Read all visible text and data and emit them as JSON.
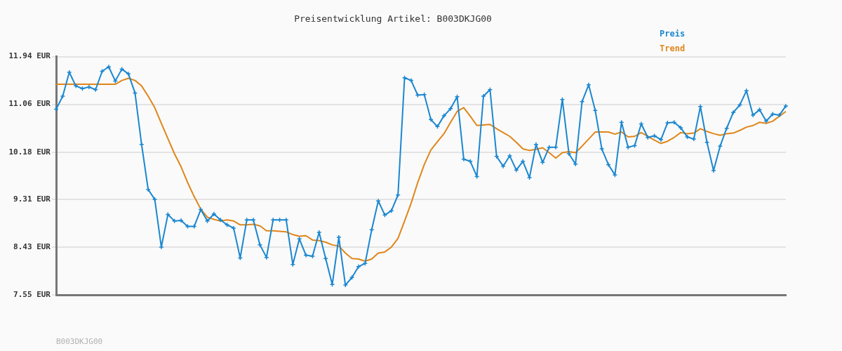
{
  "chart_data": {
    "type": "line",
    "title": "Preisentwicklung Artikel: B003DKJG00",
    "categories": [
      null,
      null,
      null,
      null,
      null,
      null,
      null,
      null,
      null,
      null,
      null,
      null,
      null,
      null,
      null,
      null,
      null,
      null,
      null,
      null,
      null,
      null,
      null,
      null,
      null,
      null,
      null,
      null,
      null,
      null,
      null,
      null,
      null,
      null,
      null,
      null,
      null,
      null,
      null,
      null,
      null,
      null,
      null,
      null,
      null,
      null,
      null,
      null,
      null,
      null,
      null,
      null,
      null,
      null,
      null,
      null,
      null,
      null,
      null,
      null,
      null,
      null,
      null,
      null,
      null,
      null,
      null,
      null,
      null,
      null,
      null,
      null,
      null,
      null,
      null,
      null,
      null,
      null,
      null,
      null,
      null,
      null,
      null,
      null,
      null,
      null,
      null,
      null,
      null,
      null,
      null,
      null,
      null,
      null,
      null,
      null,
      null,
      null,
      null,
      null,
      null,
      null,
      null,
      null,
      null,
      null,
      null,
      null,
      null,
      null,
      null,
      null
    ],
    "series": [
      {
        "name": "Preis",
        "color": "#1a87d0",
        "marker": "cross",
        "values": [
          10.97,
          11.21,
          11.65,
          11.4,
          11.35,
          11.38,
          11.33,
          11.67,
          11.75,
          11.49,
          11.71,
          11.62,
          11.27,
          10.32,
          9.49,
          9.31,
          8.43,
          9.03,
          8.91,
          8.92,
          8.81,
          8.81,
          9.12,
          8.91,
          9.04,
          8.93,
          8.84,
          8.78,
          8.23,
          8.93,
          8.93,
          8.47,
          8.24,
          8.93,
          8.93,
          8.93,
          8.11,
          8.58,
          8.28,
          8.26,
          8.7,
          8.22,
          7.74,
          8.61,
          7.73,
          7.87,
          8.07,
          8.13,
          8.75,
          9.28,
          9.02,
          9.1,
          9.39,
          11.55,
          11.5,
          11.23,
          11.24,
          10.78,
          10.65,
          10.85,
          10.98,
          11.2,
          10.05,
          10.01,
          9.73,
          11.21,
          11.33,
          10.1,
          9.92,
          10.11,
          9.85,
          10.01,
          9.71,
          10.32,
          9.99,
          10.27,
          10.27,
          11.15,
          10.15,
          9.96,
          11.11,
          11.42,
          10.95,
          10.24,
          9.95,
          9.76,
          10.73,
          10.27,
          10.3,
          10.7,
          10.45,
          10.48,
          10.41,
          10.72,
          10.73,
          10.63,
          10.46,
          10.42,
          11.02,
          10.36,
          9.84,
          10.29,
          10.62,
          10.91,
          11.05,
          11.31,
          10.86,
          10.96,
          10.75,
          10.88,
          10.86,
          11.03
        ]
      },
      {
        "name": "Trend",
        "color": "#e0861a",
        "marker": "none",
        "values": [
          11.43,
          11.43,
          11.43,
          11.43,
          11.43,
          11.43,
          11.43,
          11.43,
          11.43,
          11.43,
          11.5,
          11.54,
          11.5,
          11.4,
          11.21,
          11.0,
          10.71,
          10.43,
          10.15,
          9.91,
          9.62,
          9.36,
          9.13,
          8.98,
          8.94,
          8.91,
          8.93,
          8.91,
          8.84,
          8.84,
          8.85,
          8.82,
          8.73,
          8.73,
          8.72,
          8.71,
          8.66,
          8.63,
          8.64,
          8.56,
          8.55,
          8.52,
          8.47,
          8.45,
          8.32,
          8.22,
          8.21,
          8.17,
          8.21,
          8.32,
          8.34,
          8.43,
          8.59,
          8.91,
          9.24,
          9.62,
          9.95,
          10.22,
          10.37,
          10.52,
          10.73,
          10.93,
          11.0,
          10.84,
          10.67,
          10.68,
          10.69,
          10.61,
          10.54,
          10.47,
          10.36,
          10.24,
          10.21,
          10.23,
          10.26,
          10.17,
          10.07,
          10.17,
          10.19,
          10.17,
          10.29,
          10.42,
          10.55,
          10.55,
          10.55,
          10.51,
          10.55,
          10.46,
          10.47,
          10.54,
          10.47,
          10.4,
          10.34,
          10.38,
          10.45,
          10.54,
          10.52,
          10.53,
          10.61,
          10.56,
          10.52,
          10.49,
          10.52,
          10.53,
          10.58,
          10.64,
          10.67,
          10.73,
          10.71,
          10.75,
          10.84,
          10.93
        ]
      }
    ],
    "ylim": [
      7.55,
      11.94
    ],
    "yticks": [
      {
        "value": 7.55,
        "label": "7.55 EUR"
      },
      {
        "value": 8.43,
        "label": "8.43 EUR"
      },
      {
        "value": 9.31,
        "label": "9.31 EUR"
      },
      {
        "value": 10.18,
        "label": "10.18 EUR"
      },
      {
        "value": 11.06,
        "label": "11.06 EUR"
      },
      {
        "value": 11.94,
        "label": "11.94 EUR"
      }
    ],
    "grid": "y",
    "legend": "top right",
    "tick_labels": "y",
    "line_style": "solid",
    "annotations": [
      "B003DKJG00"
    ]
  }
}
